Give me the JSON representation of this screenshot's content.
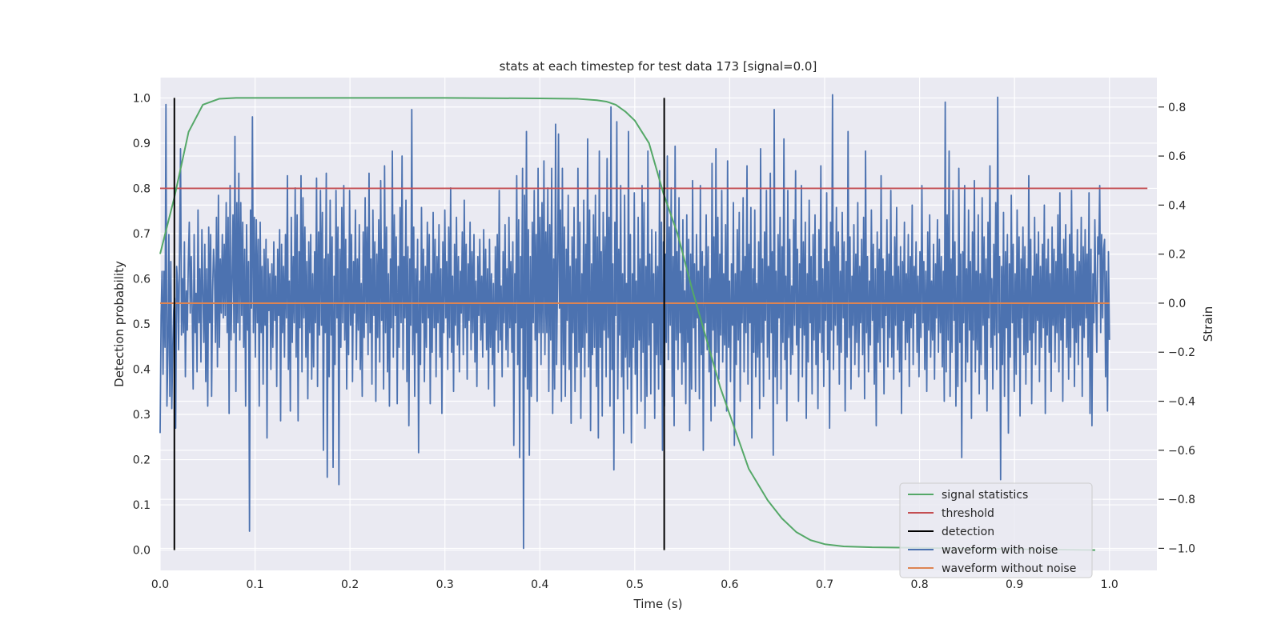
{
  "chart_data": {
    "type": "line",
    "title": "stats at each timestep for test data 173 [signal=0.0]",
    "xlabel": "Time (s)",
    "ylabel_left": "Detection probability",
    "ylabel_right": "Strain",
    "xlim": [
      0.0,
      1.05
    ],
    "ylim_left": [
      -0.045,
      1.045
    ],
    "ylim_right": [
      -1.09,
      0.92
    ],
    "x_ticks": [
      0.0,
      0.1,
      0.2,
      0.3,
      0.4,
      0.5,
      0.6,
      0.7,
      0.8,
      0.9,
      1.0
    ],
    "x_tick_labels": [
      "0.0",
      "0.1",
      "0.2",
      "0.3",
      "0.4",
      "0.5",
      "0.6",
      "0.7",
      "0.8",
      "0.9",
      "1.0"
    ],
    "y_left_ticks": [
      0.0,
      0.1,
      0.2,
      0.3,
      0.4,
      0.5,
      0.6,
      0.7,
      0.8,
      0.9,
      1.0
    ],
    "y_left_tick_labels": [
      "0.0",
      "0.1",
      "0.2",
      "0.3",
      "0.4",
      "0.5",
      "0.6",
      "0.7",
      "0.8",
      "0.9",
      "1.0"
    ],
    "y_right_ticks": [
      -1.0,
      -0.8,
      -0.6,
      -0.4,
      -0.2,
      0.0,
      0.2,
      0.4,
      0.6,
      0.8
    ],
    "y_right_tick_labels": [
      "−1.0",
      "−0.8",
      "−0.6",
      "−0.4",
      "−0.2",
      "0.0",
      "0.2",
      "0.4",
      "0.6",
      "0.8"
    ],
    "grid": true,
    "legend_position": "lower-right",
    "colors": {
      "background": "#eaeaf2",
      "grid": "#ffffff",
      "signal_statistics": "#55a868",
      "threshold": "#c44e52",
      "detection": "#000000",
      "waveform_with_noise": "#4c72b0",
      "waveform_without_noise": "#dd8452"
    },
    "series": [
      {
        "name": "signal statistics",
        "axis": "left",
        "x": [
          0.0,
          0.015,
          0.03,
          0.045,
          0.062,
          0.08,
          0.1,
          0.15,
          0.2,
          0.3,
          0.4,
          0.44,
          0.46,
          0.47,
          0.48,
          0.49,
          0.5,
          0.515,
          0.53,
          0.545,
          0.56,
          0.575,
          0.59,
          0.605,
          0.62,
          0.64,
          0.655,
          0.67,
          0.685,
          0.7,
          0.72,
          0.75,
          0.8,
          0.85,
          0.9,
          0.95,
          0.985
        ],
        "y": [
          0.655,
          0.78,
          0.925,
          0.985,
          0.998,
          1.0,
          1.0,
          1.0,
          1.0,
          1.0,
          0.999,
          0.998,
          0.995,
          0.992,
          0.985,
          0.97,
          0.95,
          0.9,
          0.79,
          0.7,
          0.58,
          0.47,
          0.36,
          0.27,
          0.18,
          0.11,
          0.07,
          0.04,
          0.022,
          0.013,
          0.008,
          0.006,
          0.005,
          0.003,
          0.002,
          0.001,
          0.0
        ]
      },
      {
        "name": "threshold",
        "axis": "left",
        "x": [
          0.0,
          1.04
        ],
        "y": [
          0.8,
          0.8
        ]
      },
      {
        "name": "detection",
        "axis": "left",
        "x_positions": [
          0.015,
          0.531
        ],
        "y_range": [
          0.0,
          1.0
        ]
      },
      {
        "name": "waveform with noise",
        "axis": "right",
        "x_start": 0.0,
        "x_end": 1.0,
        "y": [
          -0.53,
          -0.05,
          0.13,
          -0.29,
          0.13,
          -0.18,
          0.81,
          -0.42,
          -0.21,
          0.28,
          -0.38,
          0.17,
          -0.43,
          -0.18,
          -0.03,
          0.02,
          -0.51,
          0.15,
          0.08,
          -0.19,
          0.21,
          0.63,
          -0.13,
          0.1,
          -0.12,
          0.25,
          -0.3,
          0.05,
          -0.11,
          0.16,
          0.33,
          -0.04,
          0.19,
          -0.02,
          -0.35,
          0.28,
          -0.12,
          0.04,
          -0.28,
          0.38,
          -0.08,
          0.14,
          -0.24,
          0.3,
          0.04,
          -0.16,
          0.24,
          -0.32,
          0.14,
          -0.42,
          0.31,
          -0.08,
          0.28,
          -0.38,
          0.05,
          0.22,
          0.13,
          -0.16,
          0.35,
          -0.26,
          0.44,
          -0.18,
          0.18,
          -0.04,
          0.28,
          -0.06,
          0.24,
          -0.05,
          0.41,
          -0.12,
          0.35,
          -0.45,
          0.48,
          -0.15,
          0.09,
          0.36,
          -0.12,
          0.68,
          -0.36,
          0.41,
          -0.08,
          0.53,
          -0.15,
          0.41,
          -0.05,
          0.33,
          -0.18,
          0.22,
          -0.42,
          0.32,
          -0.11,
          0.17,
          -0.93,
          0.38,
          -0.02,
          0.76,
          -0.12,
          0.35,
          -0.22,
          0.34,
          -0.08,
          0.26,
          -0.42,
          0.33,
          -0.12,
          0.15,
          -0.33,
          0.22,
          -0.09,
          0.26,
          -0.55,
          0.18,
          -0.03,
          0.12,
          -0.27,
          0.16,
          -0.18,
          0.25,
          -0.07,
          0.11,
          -0.34,
          0.22,
          -0.05,
          0.3,
          -0.48,
          0.24,
          -0.12,
          0.15,
          -0.22,
          0.28,
          -0.06,
          0.52,
          -0.27,
          0.09,
          -0.44,
          0.35,
          -0.16,
          0.19,
          -0.08,
          0.47,
          -0.22,
          0.36,
          -0.48,
          0.21,
          -0.1,
          0.52,
          -0.28,
          0.43,
          -0.06,
          0.31,
          -0.22,
          0.17,
          -0.39,
          0.25,
          -0.12,
          0.28,
          -0.31,
          0.12,
          -0.26,
          0.21,
          -0.08,
          0.51,
          -0.34,
          0.29,
          -0.13,
          0.46,
          -0.09,
          0.37,
          -0.6,
          0.18,
          -0.12,
          0.53,
          -0.71,
          0.2,
          -0.3,
          0.42,
          -0.13,
          0.27,
          -0.67,
          0.11,
          -0.25,
          0.46,
          -0.06,
          0.31,
          -0.74,
          0.22,
          -0.18,
          0.39,
          -0.08,
          0.48,
          -0.15,
          0.26,
          -0.35,
          0.14,
          -0.21,
          0.46,
          -0.09,
          0.28,
          -0.32,
          0.17,
          -0.04,
          0.38,
          -0.23,
          0.18,
          -0.11,
          0.32,
          -0.27,
          0.08,
          -0.38,
          0.29,
          -0.14,
          0.43,
          -0.08,
          0.31,
          -0.21,
          0.53,
          -0.12,
          0.18,
          -0.33,
          0.38,
          -0.05,
          0.25,
          -0.4,
          0.2,
          -0.14,
          0.34,
          -0.24,
          0.5,
          -0.07,
          0.22,
          -0.35,
          0.56,
          -0.12,
          0.31,
          -0.28,
          0.12,
          -0.42,
          0.18,
          -0.1,
          0.62,
          -0.22,
          0.36,
          -0.05,
          0.27,
          -0.41,
          0.15,
          -0.18,
          0.39,
          -0.08,
          0.6,
          -0.27,
          0.19,
          -0.06,
          0.42,
          -0.32,
          0.23,
          -0.5,
          0.18,
          -0.09,
          0.79,
          -0.21,
          0.31,
          -0.38,
          0.14,
          -0.12,
          0.26,
          -0.61,
          0.09,
          -0.25,
          0.39,
          -0.08,
          0.22,
          -0.32,
          0.15,
          -0.18,
          0.33,
          -0.06,
          0.28,
          -0.41,
          0.12,
          -0.2,
          0.37,
          -0.1,
          0.26,
          -0.3,
          0.19,
          -0.08,
          0.32,
          -0.22,
          0.14,
          -0.45,
          0.25,
          -0.12,
          0.38,
          -0.06,
          0.17,
          -0.27,
          0.31,
          -0.14,
          0.47,
          -0.2,
          0.11,
          -0.36,
          0.24,
          -0.09,
          0.35,
          -0.17,
          0.19,
          -0.28,
          0.13,
          -0.04,
          0.29,
          -0.21,
          0.42,
          -0.1,
          0.24,
          -0.31,
          0.16,
          -0.07,
          0.33,
          -0.19,
          0.21,
          -0.12,
          0.28,
          -0.24,
          0.09,
          -0.34,
          0.19,
          -0.05,
          0.26,
          -0.15,
          0.11,
          -0.22,
          0.3,
          -0.08,
          0.22,
          -0.19,
          0.14,
          -0.35,
          0.26,
          -0.18,
          0.12,
          -0.25,
          0.08,
          -0.42,
          0.23,
          -0.11,
          0.28,
          -0.2,
          0.46,
          -0.15,
          0.07,
          -0.3,
          0.21,
          -0.08,
          0.32,
          -0.19,
          0.14,
          -0.26,
          0.35,
          -0.1,
          0.17,
          -0.2,
          0.25,
          -0.58,
          0.12,
          -0.08,
          0.52,
          -0.25,
          0.34,
          -0.63,
          0.19,
          -0.1,
          0.55,
          -1.0,
          0.44,
          -0.3,
          0.7,
          -0.35,
          0.3,
          -0.62,
          0.19,
          -0.38,
          0.33,
          -0.08,
          0.46,
          -0.15,
          0.28,
          -0.4,
          0.55,
          -0.12,
          0.35,
          -0.25,
          0.41,
          -0.12,
          0.58,
          -0.21,
          0.29,
          -0.12,
          0.47,
          -0.36,
          0.32,
          -0.15,
          0.55,
          -0.45,
          0.18,
          -0.35,
          0.73,
          -0.25,
          0.1,
          0.69,
          -0.02,
          0.38,
          -0.4,
          0.55,
          -0.25,
          0.31,
          -0.38,
          0.22,
          -0.07,
          0.44,
          -0.27,
          0.15,
          -0.49,
          0.27,
          -0.12,
          0.39,
          -0.36,
          0.18,
          -0.26,
          0.55,
          -0.2,
          0.33,
          -0.47,
          0.12,
          -0.18,
          0.42,
          -0.3,
          0.24,
          -0.12,
          0.67,
          -0.26,
          0.38,
          -0.52,
          0.16,
          -0.21,
          0.36,
          -0.18,
          0.44,
          -0.34,
          0.27,
          -0.55,
          0.62,
          -0.18,
          0.21,
          -0.46,
          0.37,
          -0.11,
          0.27,
          -0.3,
          0.59,
          -0.14,
          0.35,
          -0.42,
          0.8,
          -0.27,
          0.16,
          -0.68,
          0.33,
          -0.05,
          0.74,
          -0.39,
          0.22,
          -0.13,
          0.48,
          -0.3,
          0.12,
          -0.53,
          0.44,
          -0.22,
          0.08,
          -0.35,
          0.7,
          -0.26,
          0.28,
          -0.57,
          0.12,
          -0.18,
          0.45,
          -0.29,
          0.09,
          -0.45,
          0.35,
          -0.15,
          0.18,
          -0.4,
          0.48,
          -0.2,
          0.41,
          -0.51,
          0.15,
          -0.38,
          0.62,
          -0.17,
          0.2,
          -0.37,
          0.3,
          -0.08,
          0.12,
          -0.47,
          0.29,
          -0.21,
          0.15,
          -0.35,
          0.54,
          -0.25,
          0.33,
          -0.6,
          0.25,
          -0.42,
          0.2,
          -0.16,
          0.6,
          -0.23,
          0.31,
          -0.09,
          0.47,
          -0.38,
          0.19,
          -0.5,
          0.64,
          -0.15,
          0.21,
          -0.27,
          0.43,
          -0.12,
          0.13,
          -0.33,
          0.34,
          -0.24,
          0.05,
          -0.41,
          0.36,
          -0.16,
          0.26,
          -0.52,
          0.2,
          -0.35,
          0.5,
          -0.1,
          0.16,
          -0.36,
          0.28,
          -0.06,
          0.13,
          -0.39,
          0.48,
          -0.21,
          0.21,
          -0.6,
          0.15,
          -0.08,
          0.36,
          -0.19,
          0.23,
          -0.28,
          0.1,
          -0.48,
          0.57,
          -0.11,
          0.27,
          -0.42,
          0.63,
          -0.2,
          0.35,
          -0.31,
          0.2,
          -0.13,
          0.46,
          -0.24,
          0.12,
          -0.17,
          0.32,
          -0.44,
          0.58,
          -0.18,
          0.09,
          -0.32,
          0.16,
          -0.09,
          0.41,
          -0.58,
          0.12,
          -0.25,
          0.3,
          -0.15,
          0.37,
          -0.4,
          0.13,
          -0.08,
          0.43,
          -0.28,
          0.19,
          -0.12,
          0.56,
          -0.33,
          0.24,
          -0.08,
          0.39,
          -0.55,
          0.14,
          -0.2,
          0.38,
          -0.3,
          0.08,
          -0.22,
          0.25,
          -0.43,
          0.63,
          -0.16,
          0.18,
          -0.38,
          0.29,
          -0.07,
          0.46,
          -0.22,
          0.15,
          -0.31,
          0.53,
          -0.12,
          0.21,
          -0.62,
          0.79,
          -0.3,
          0.13,
          -0.41,
          0.28,
          -0.06,
          0.35,
          -0.35,
          0.23,
          -0.16,
          0.67,
          -0.23,
          0.11,
          -0.48,
          0.46,
          -0.14,
          0.26,
          -0.29,
          0.07,
          -0.21,
          0.34,
          -0.09,
          0.54,
          -0.17,
          0.22,
          -0.4,
          0.16,
          -0.1,
          0.48,
          -0.3,
          0.25,
          -0.13,
          0.33,
          -0.47,
          0.12,
          -0.24,
          0.42,
          -0.08,
          0.19,
          -0.37,
          0.28,
          -0.15,
          0.36,
          -0.25,
          0.09,
          -0.43,
          0.3,
          -0.12,
          0.56,
          -0.2,
          0.14,
          -0.34,
          0.22,
          -0.07,
          0.45,
          -0.23,
          0.17,
          -0.51,
          0.33,
          -0.11,
          0.85,
          -0.27,
          0.23,
          -0.09,
          0.39,
          -0.17,
          0.29,
          -0.33,
          0.13,
          -0.2,
          0.37,
          -0.06,
          0.25,
          -0.44,
          0.17,
          -0.22,
          0.7,
          -0.14,
          0.27,
          -0.35,
          0.11,
          -0.09,
          0.32,
          -0.25,
          0.2,
          -0.16,
          0.41,
          -0.3,
          0.15,
          -0.08,
          0.26,
          -0.21,
          0.35,
          -0.39,
          0.62,
          -0.12,
          0.19,
          -0.28,
          0.09,
          -0.17,
          0.38,
          -0.07,
          0.24,
          -0.33,
          0.14,
          -0.5,
          0.29,
          -0.16,
          0.22,
          -0.24,
          0.52,
          -0.1,
          0.18,
          -0.37,
          0.13,
          -0.05,
          0.34,
          -0.26,
          0.2,
          -0.14,
          0.46,
          -0.22,
          0.11,
          -0.31,
          0.27,
          -0.09,
          0.39,
          -0.19,
          0.15,
          -0.28,
          0.23,
          -0.45,
          0.17,
          -0.07,
          0.33,
          -0.23,
          0.12,
          -0.16,
          0.28,
          -0.34,
          0.19,
          -0.1,
          0.4,
          -0.25,
          0.15,
          -0.04,
          0.25,
          -0.2,
          0.11,
          -0.3,
          0.21,
          -0.14,
          0.48,
          -0.08,
          0.17,
          -0.27,
          0.13,
          -0.36,
          0.29,
          -0.11,
          0.36,
          -0.22,
          0.09,
          -0.15,
          0.24,
          -0.31,
          0.16,
          -0.06,
          0.34,
          -0.2,
          0.26,
          -0.12,
          0.19,
          -0.26,
          0.13,
          -0.4,
          0.82,
          -0.28,
          0.36,
          -0.15,
          0.62,
          -0.38,
          0.18,
          -0.2,
          0.46,
          -0.07,
          0.25,
          -0.42,
          0.11,
          -0.34,
          0.55,
          -0.16,
          0.2,
          -0.63,
          0.21,
          -0.08,
          0.48,
          -0.32,
          0.14,
          -0.24,
          0.38,
          -0.11,
          0.17,
          -0.47,
          0.29,
          -0.15,
          0.5,
          -0.28,
          0.13,
          -0.19,
          0.36,
          -0.37,
          0.12,
          -0.25,
          0.43,
          -0.09,
          0.27,
          -0.31,
          0.18,
          -0.44,
          0.33,
          -0.06,
          0.56,
          -0.18,
          0.1,
          -0.35,
          0.24,
          -0.13,
          0.41,
          -0.27,
          0.84,
          -0.12,
          0.19,
          -0.72,
          0.15,
          -0.25,
          0.37,
          -0.38,
          0.21,
          -0.1,
          0.28,
          -0.53,
          0.16,
          -0.22,
          0.44,
          -0.08,
          0.24,
          -0.36,
          0.12,
          -0.29,
          0.38,
          -0.14,
          0.27,
          -0.46,
          0.18,
          -0.06,
          0.31,
          -0.21,
          0.23,
          -0.33,
          0.14,
          -0.2,
          0.52,
          -0.15,
          0.26,
          -0.41,
          0.11,
          -0.12,
          0.35,
          -0.25,
          0.2,
          -0.07,
          0.29,
          -0.32,
          0.15,
          -0.18,
          0.24,
          -0.1,
          0.4,
          -0.45,
          0.18,
          -0.13,
          0.26,
          -0.2,
          0.12,
          -0.36,
          0.31,
          -0.09,
          0.22,
          -0.24,
          0.17,
          -0.12,
          0.36,
          -0.28,
          0.45,
          -0.15,
          0.2,
          -0.4,
          0.26,
          -0.06,
          0.32,
          -0.18,
          0.14,
          -0.31,
          0.28,
          -0.22,
          0.46,
          -0.1,
          0.2,
          -0.34,
          0.13,
          -0.16,
          0.3,
          -0.25,
          0.17,
          -0.09,
          0.35,
          -0.38,
          0.23,
          -0.14,
          0.3,
          -0.06,
          0.2,
          -0.22,
          0.45,
          -0.45,
          0.22,
          -0.5,
          0.12,
          -0.08,
          0.34,
          0.03,
          -0.2,
          0.27,
          0.2,
          0.48,
          -0.12,
          0.28,
          -0.06,
          0.22,
          0.26,
          -0.3,
          0.13,
          -0.44,
          0.21,
          -0.15
        ]
      },
      {
        "name": "waveform without noise",
        "axis": "right",
        "x": [
          0.0,
          1.0
        ],
        "y": [
          0.0,
          0.0
        ]
      }
    ]
  }
}
